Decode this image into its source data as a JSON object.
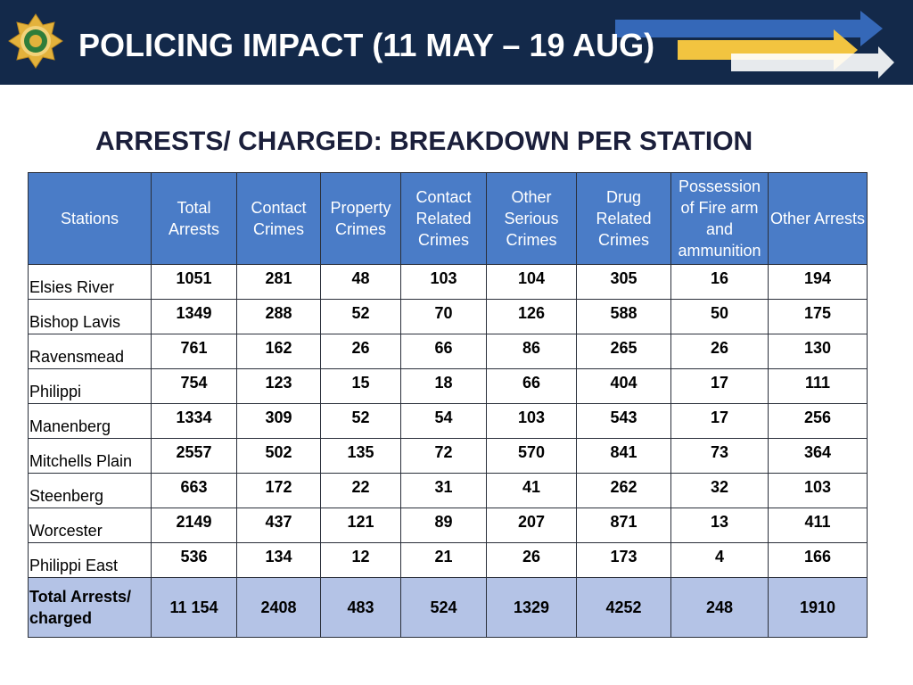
{
  "header": {
    "title": "POLICING IMPACT (11 MAY – 19 AUG)"
  },
  "subtitle": "ARRESTS/ CHARGED: BREAKDOWN PER STATION",
  "table": {
    "columns": [
      "Stations",
      "Total Arrests",
      "Contact Crimes",
      "Property Crimes",
      "Contact Related Crimes",
      "Other Serious Crimes",
      "Drug Related Crimes",
      "Possession of Fire arm and ammunition",
      "Other Arrests"
    ],
    "rows": [
      [
        "Elsies River",
        1051,
        281,
        48,
        103,
        104,
        305,
        16,
        194
      ],
      [
        "Bishop Lavis",
        1349,
        288,
        52,
        70,
        126,
        588,
        50,
        175
      ],
      [
        "Ravensmead",
        761,
        162,
        26,
        66,
        86,
        265,
        26,
        130
      ],
      [
        "Philippi",
        754,
        123,
        15,
        18,
        66,
        404,
        17,
        111
      ],
      [
        "Manenberg",
        1334,
        309,
        52,
        54,
        103,
        543,
        17,
        256
      ],
      [
        "Mitchells Plain",
        2557,
        502,
        135,
        72,
        570,
        841,
        73,
        364
      ],
      [
        "Steenberg",
        663,
        172,
        22,
        31,
        41,
        262,
        32,
        103
      ],
      [
        "Worcester",
        2149,
        437,
        121,
        89,
        207,
        871,
        13,
        411
      ],
      [
        "Philippi East",
        536,
        134,
        12,
        21,
        26,
        173,
        4,
        166
      ]
    ],
    "total": [
      "Total Arrests/ charged",
      "11 154",
      2408,
      483,
      524,
      1329,
      4252,
      248,
      1910
    ]
  }
}
